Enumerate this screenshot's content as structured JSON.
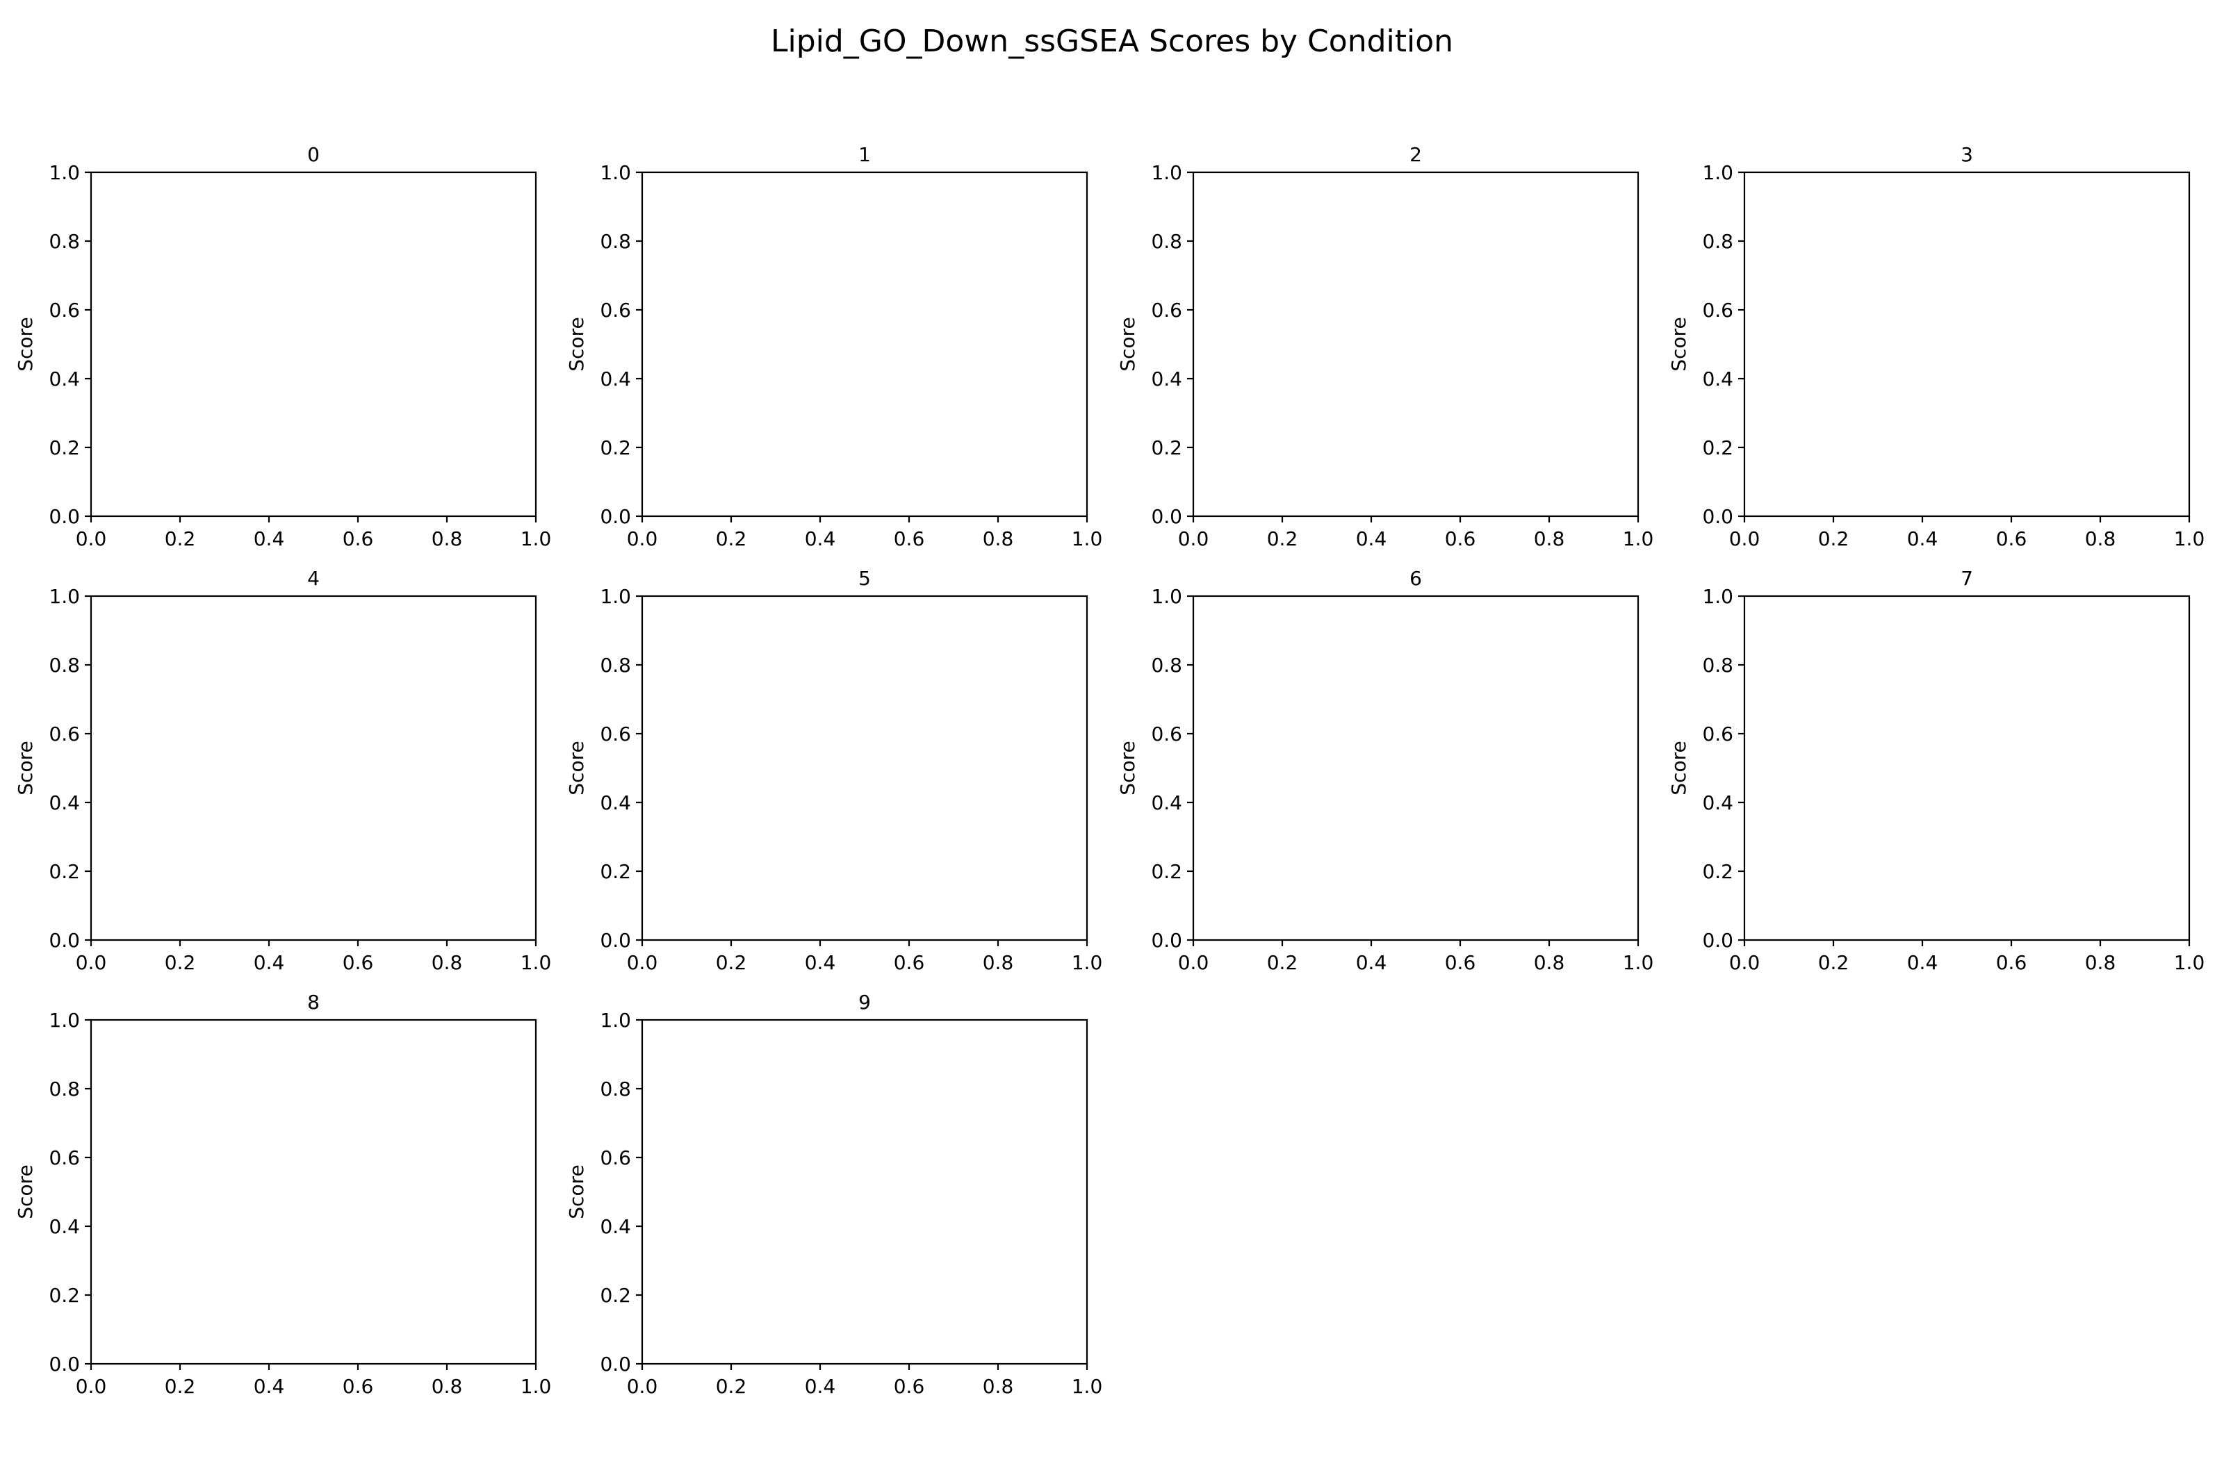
{
  "figure": {
    "title": "Lipid_GO_Down_ssGSEA Scores by Condition"
  },
  "chart_data": [
    {
      "type": "line",
      "title": "0",
      "ylabel": "Score",
      "xlabel": "",
      "xlim": [
        0,
        1
      ],
      "ylim": [
        0,
        1
      ],
      "xticks": [
        "0.0",
        "0.2",
        "0.4",
        "0.6",
        "0.8",
        "1.0"
      ],
      "yticks": [
        "0.0",
        "0.2",
        "0.4",
        "0.6",
        "0.8",
        "1.0"
      ],
      "series": [],
      "grid": false
    },
    {
      "type": "line",
      "title": "1",
      "ylabel": "Score",
      "xlabel": "",
      "xlim": [
        0,
        1
      ],
      "ylim": [
        0,
        1
      ],
      "xticks": [
        "0.0",
        "0.2",
        "0.4",
        "0.6",
        "0.8",
        "1.0"
      ],
      "yticks": [
        "0.0",
        "0.2",
        "0.4",
        "0.6",
        "0.8",
        "1.0"
      ],
      "series": [],
      "grid": false
    },
    {
      "type": "line",
      "title": "2",
      "ylabel": "Score",
      "xlabel": "",
      "xlim": [
        0,
        1
      ],
      "ylim": [
        0,
        1
      ],
      "xticks": [
        "0.0",
        "0.2",
        "0.4",
        "0.6",
        "0.8",
        "1.0"
      ],
      "yticks": [
        "0.0",
        "0.2",
        "0.4",
        "0.6",
        "0.8",
        "1.0"
      ],
      "series": [],
      "grid": false
    },
    {
      "type": "line",
      "title": "3",
      "ylabel": "Score",
      "xlabel": "",
      "xlim": [
        0,
        1
      ],
      "ylim": [
        0,
        1
      ],
      "xticks": [
        "0.0",
        "0.2",
        "0.4",
        "0.6",
        "0.8",
        "1.0"
      ],
      "yticks": [
        "0.0",
        "0.2",
        "0.4",
        "0.6",
        "0.8",
        "1.0"
      ],
      "series": [],
      "grid": false
    },
    {
      "type": "line",
      "title": "4",
      "ylabel": "Score",
      "xlabel": "",
      "xlim": [
        0,
        1
      ],
      "ylim": [
        0,
        1
      ],
      "xticks": [
        "0.0",
        "0.2",
        "0.4",
        "0.6",
        "0.8",
        "1.0"
      ],
      "yticks": [
        "0.0",
        "0.2",
        "0.4",
        "0.6",
        "0.8",
        "1.0"
      ],
      "series": [],
      "grid": false
    },
    {
      "type": "line",
      "title": "5",
      "ylabel": "Score",
      "xlabel": "",
      "xlim": [
        0,
        1
      ],
      "ylim": [
        0,
        1
      ],
      "xticks": [
        "0.0",
        "0.2",
        "0.4",
        "0.6",
        "0.8",
        "1.0"
      ],
      "yticks": [
        "0.0",
        "0.2",
        "0.4",
        "0.6",
        "0.8",
        "1.0"
      ],
      "series": [],
      "grid": false
    },
    {
      "type": "line",
      "title": "6",
      "ylabel": "Score",
      "xlabel": "",
      "xlim": [
        0,
        1
      ],
      "ylim": [
        0,
        1
      ],
      "xticks": [
        "0.0",
        "0.2",
        "0.4",
        "0.6",
        "0.8",
        "1.0"
      ],
      "yticks": [
        "0.0",
        "0.2",
        "0.4",
        "0.6",
        "0.8",
        "1.0"
      ],
      "series": [],
      "grid": false
    },
    {
      "type": "line",
      "title": "7",
      "ylabel": "Score",
      "xlabel": "",
      "xlim": [
        0,
        1
      ],
      "ylim": [
        0,
        1
      ],
      "xticks": [
        "0.0",
        "0.2",
        "0.4",
        "0.6",
        "0.8",
        "1.0"
      ],
      "yticks": [
        "0.0",
        "0.2",
        "0.4",
        "0.6",
        "0.8",
        "1.0"
      ],
      "series": [],
      "grid": false
    },
    {
      "type": "line",
      "title": "8",
      "ylabel": "Score",
      "xlabel": "",
      "xlim": [
        0,
        1
      ],
      "ylim": [
        0,
        1
      ],
      "xticks": [
        "0.0",
        "0.2",
        "0.4",
        "0.6",
        "0.8",
        "1.0"
      ],
      "yticks": [
        "0.0",
        "0.2",
        "0.4",
        "0.6",
        "0.8",
        "1.0"
      ],
      "series": [],
      "grid": false
    },
    {
      "type": "line",
      "title": "9",
      "ylabel": "Score",
      "xlabel": "",
      "xlim": [
        0,
        1
      ],
      "ylim": [
        0,
        1
      ],
      "xticks": [
        "0.0",
        "0.2",
        "0.4",
        "0.6",
        "0.8",
        "1.0"
      ],
      "yticks": [
        "0.0",
        "0.2",
        "0.4",
        "0.6",
        "0.8",
        "1.0"
      ],
      "series": [],
      "grid": false
    }
  ]
}
